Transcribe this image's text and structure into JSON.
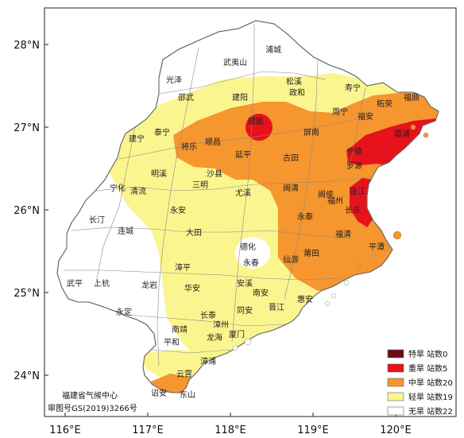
{
  "map": {
    "lon_ticks": [
      "116°E",
      "117°E",
      "118°E",
      "119°E",
      "120°E"
    ],
    "lat_ticks": [
      "28°N",
      "27°N",
      "26°N",
      "25°N",
      "24°N"
    ],
    "credit": {
      "line1": "福建省气候中心",
      "line2": "审图号GS(2019)3266号"
    },
    "legend": [
      {
        "name": "特旱",
        "count": "站数0",
        "color": "#6b0a1a"
      },
      {
        "name": "重旱",
        "count": "站数5",
        "color": "#e8121c"
      },
      {
        "name": "中旱",
        "count": "站数20",
        "color": "#f5962e"
      },
      {
        "name": "轻旱",
        "count": "站数19",
        "color": "#fbf58f"
      },
      {
        "name": "无旱",
        "count": "站数22",
        "color": "#ffffff"
      }
    ],
    "counties": [
      {
        "name": "浦城"
      },
      {
        "name": "武夷山"
      },
      {
        "name": "光泽"
      },
      {
        "name": "松溪"
      },
      {
        "name": "寿宁"
      },
      {
        "name": "邵武"
      },
      {
        "name": "建阳"
      },
      {
        "name": "政和"
      },
      {
        "name": "柘荣"
      },
      {
        "name": "福鼎"
      },
      {
        "name": "建瓯"
      },
      {
        "name": "周宁"
      },
      {
        "name": "福安"
      },
      {
        "name": "霞浦"
      },
      {
        "name": "泰宁"
      },
      {
        "name": "建宁"
      },
      {
        "name": "将乐"
      },
      {
        "name": "顺昌"
      },
      {
        "name": "屏南"
      },
      {
        "name": "宁德"
      },
      {
        "name": "延平"
      },
      {
        "name": "古田"
      },
      {
        "name": "罗源"
      },
      {
        "name": "明溪"
      },
      {
        "name": "沙县"
      },
      {
        "name": "三明"
      },
      {
        "name": "闽清"
      },
      {
        "name": "闽侯"
      },
      {
        "name": "连江"
      },
      {
        "name": "宁化"
      },
      {
        "name": "清流"
      },
      {
        "name": "尤溪"
      },
      {
        "name": "福州"
      },
      {
        "name": "长乐"
      },
      {
        "name": "永安"
      },
      {
        "name": "永泰"
      },
      {
        "name": "长汀"
      },
      {
        "name": "连城"
      },
      {
        "name": "大田"
      },
      {
        "name": "福清"
      },
      {
        "name": "德化"
      },
      {
        "name": "平潭"
      },
      {
        "name": "永春"
      },
      {
        "name": "仙游"
      },
      {
        "name": "莆田"
      },
      {
        "name": "漳平"
      },
      {
        "name": "武平"
      },
      {
        "name": "上杭"
      },
      {
        "name": "龙岩"
      },
      {
        "name": "安溪"
      },
      {
        "name": "南安"
      },
      {
        "name": "华安"
      },
      {
        "name": "惠安"
      },
      {
        "name": "晋江"
      },
      {
        "name": "永定"
      },
      {
        "name": "长泰"
      },
      {
        "name": "同安"
      },
      {
        "name": "南靖"
      },
      {
        "name": "漳州"
      },
      {
        "name": "厦门"
      },
      {
        "name": "平和"
      },
      {
        "name": "龙海"
      },
      {
        "name": "漳浦"
      },
      {
        "name": "云霄"
      },
      {
        "name": "诏安"
      },
      {
        "name": "东山"
      }
    ]
  }
}
